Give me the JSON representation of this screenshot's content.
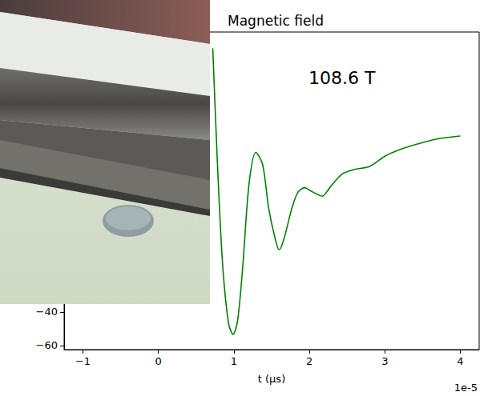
{
  "chart_data": {
    "type": "line",
    "title": "Magnetic field",
    "x_label": "t (μs)",
    "x_offset": "1e-5",
    "annotation": "108.6 T",
    "x": [
      0.72,
      0.78,
      0.85,
      0.93,
      0.99,
      1.05,
      1.12,
      1.2,
      1.29,
      1.38,
      1.46,
      1.54,
      1.6,
      1.66,
      1.77,
      1.85,
      1.94,
      2.02,
      2.17,
      2.27,
      2.43,
      2.59,
      2.8,
      3.01,
      3.22,
      3.43,
      3.69,
      4.0
    ],
    "values": [
      117,
      50.5,
      -11.4,
      -47,
      -53.3,
      -44.8,
      -11.4,
      36,
      55,
      48,
      22,
      5,
      -3,
      3,
      22,
      31.4,
      34,
      32,
      29,
      34,
      42,
      44.8,
      46.7,
      53,
      57,
      60,
      63,
      64.8
    ],
    "color": "#008000",
    "xlim": [
      -1.25,
      4.25
    ],
    "xticks": [
      {
        "value": -1,
        "label": "−1"
      },
      0,
      1,
      2,
      3,
      4
    ],
    "ylim": [
      -62.4,
      126.7
    ],
    "yticks": [
      {
        "value": -60,
        "label": "−60"
      },
      {
        "value": -40,
        "label": "−40"
      }
    ],
    "grid": false
  }
}
